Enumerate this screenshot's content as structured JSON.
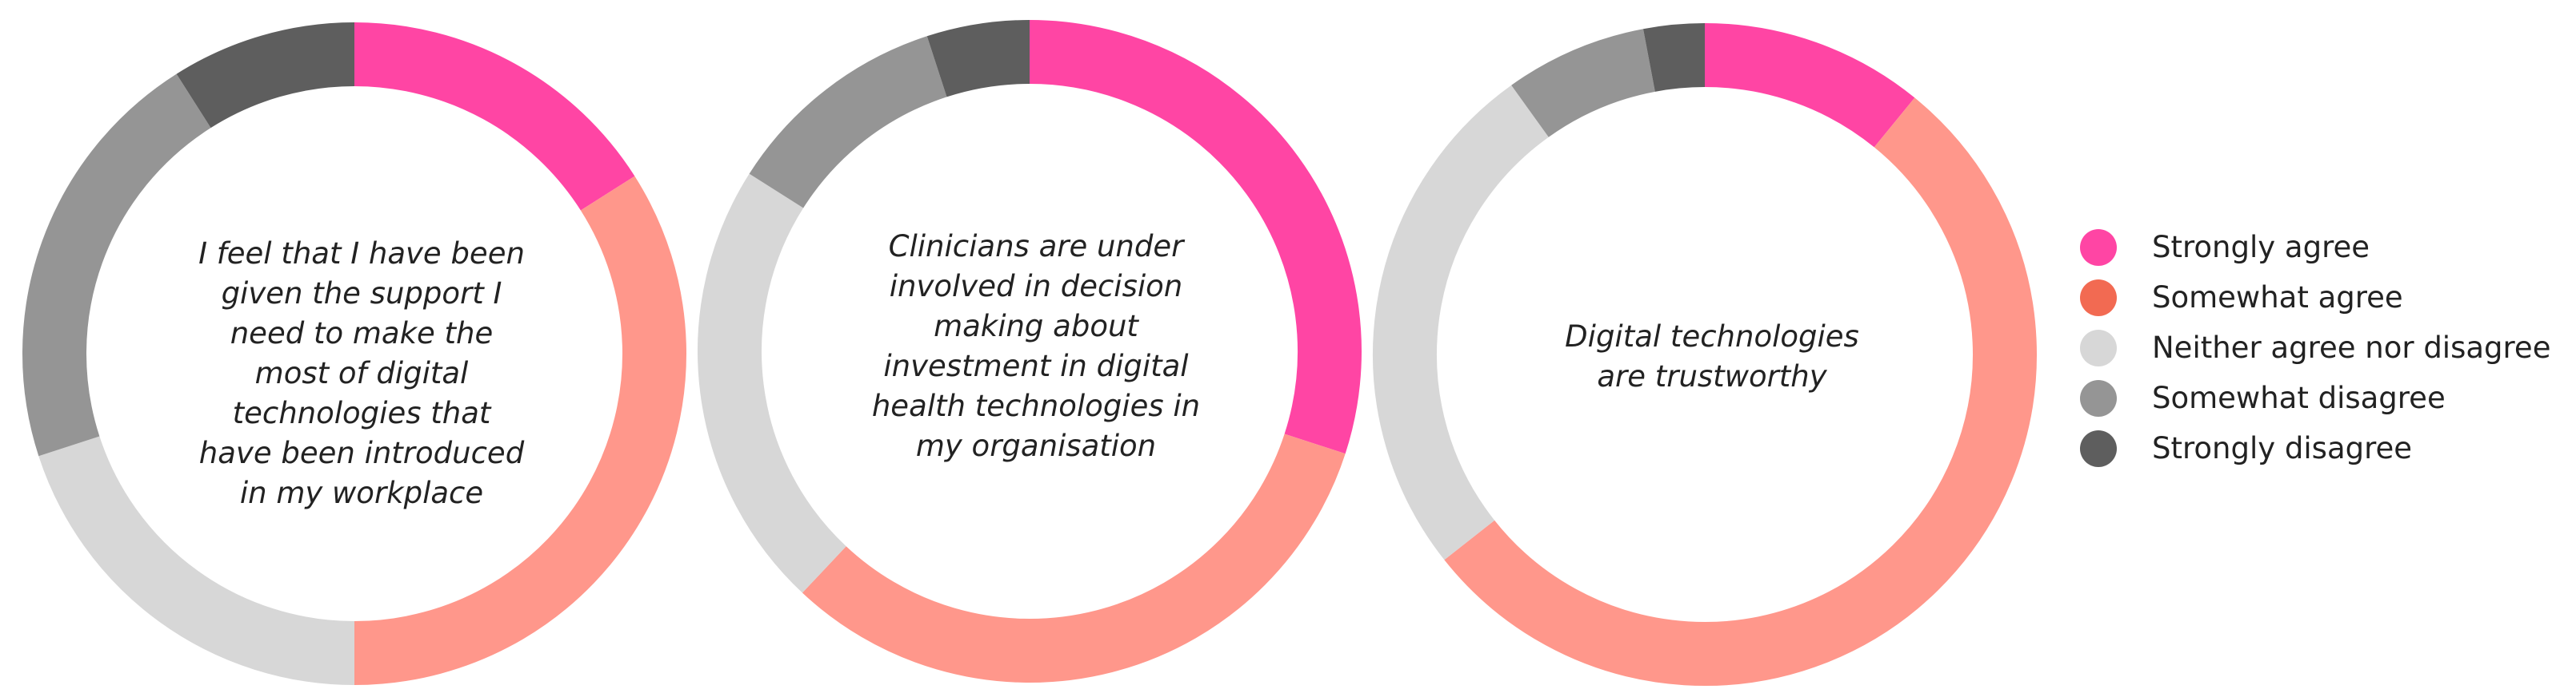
{
  "chart_data": [
    {
      "type": "pie",
      "title": "I feel that I have been given the support I need to make the most of digital technologies that have been introduced in my workplace",
      "categories": [
        "Strongly agree",
        "Somewhat agree",
        "Neither agree nor disagree",
        "Somewhat disagree",
        "Strongly disagree"
      ],
      "values": [
        16,
        34,
        20,
        21,
        9
      ]
    },
    {
      "type": "pie",
      "title": "Clinicians are under involved in decision making about investment in digital health technologies in my organisation",
      "categories": [
        "Strongly agree",
        "Somewhat agree",
        "Neither agree nor disagree",
        "Somewhat disagree",
        "Strongly disagree"
      ],
      "values": [
        30,
        32,
        22,
        11,
        5
      ]
    },
    {
      "type": "pie",
      "title": "Digital technologies are trustworthy",
      "categories": [
        "Strongly agree",
        "Somewhat agree",
        "Neither agree nor disagree",
        "Somewhat disagree",
        "Strongly disagree"
      ],
      "values": [
        11,
        54,
        26,
        7,
        3
      ]
    }
  ],
  "legend": {
    "items": [
      {
        "label": "Strongly agree",
        "color": "#FF45A4"
      },
      {
        "label": "Somewhat agree",
        "color": "#F26A52"
      },
      {
        "label": "Neither agree nor disagree",
        "color": "#D7D7D7"
      },
      {
        "label": "Somewhat disagree",
        "color": "#959595"
      },
      {
        "label": "Strongly disagree",
        "color": "#5E5E5E"
      }
    ]
  },
  "segment_colors": [
    "#FF45A4",
    "#FF978B",
    "#D7D7D7",
    "#959595",
    "#5E5E5E"
  ]
}
